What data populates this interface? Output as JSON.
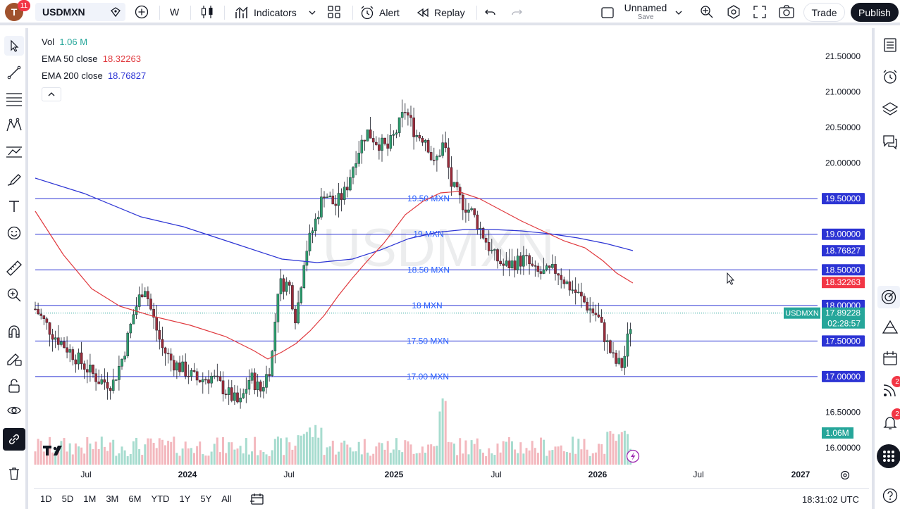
{
  "topbar": {
    "avatar_letter": "T",
    "notifications": "11",
    "symbol": "USDMXN",
    "interval": "W",
    "indicators_label": "Indicators",
    "alert_label": "Alert",
    "replay_label": "Replay",
    "layout_name": "Unnamed",
    "layout_sub": "Save",
    "trade_label": "Trade",
    "publish_label": "Publish"
  },
  "legend": {
    "vol_label": "Vol",
    "vol_value": "1.06 M",
    "ema50_label": "EMA 50 close",
    "ema50_value": "18.32263",
    "ema200_label": "EMA 200 close",
    "ema200_value": "18.76827"
  },
  "chart_data": {
    "type": "candlestick",
    "symbol": "USDMXN",
    "watermark": "USDMXN",
    "interval": "W",
    "price_axis": {
      "ticks": [
        "21.50000",
        "21.00000",
        "20.50000",
        "20.00000",
        "16.50000",
        "16.00000"
      ]
    },
    "time_axis": {
      "labels": [
        "Jul",
        "2024",
        "Jul",
        "2025",
        "Jul",
        "2026",
        "Jul",
        "2027"
      ]
    },
    "horizontal_lines": [
      {
        "label": "19.50 MXN",
        "axis_label": "19.50000"
      },
      {
        "label": "19 MXN",
        "axis_label": "19.00000"
      },
      {
        "label": "18.50 MXN",
        "axis_label": "18.50000"
      },
      {
        "label": "18 MXN",
        "axis_label": "18.00000"
      },
      {
        "label": "17.50 MXN",
        "axis_label": "17.50000"
      },
      {
        "label": "17.00 MXN",
        "axis_label": "17.00000"
      }
    ],
    "ema200_axis_label": "18.76827",
    "ema50_axis_label": "18.32263",
    "last_price": {
      "symbol": "USDMXN",
      "value": "17.89228",
      "countdown": "02:28:57"
    },
    "volume_axis_label": "1.06M",
    "candles_approx": [
      [
        2023.25,
        18.1,
        17.8
      ],
      [
        2023.45,
        17.2,
        16.8
      ],
      [
        2023.6,
        17.0,
        16.7
      ],
      [
        2023.75,
        17.7,
        18.2
      ],
      [
        2023.85,
        18.5,
        17.9
      ],
      [
        2023.95,
        17.3,
        16.9
      ],
      [
        2024.1,
        17.0,
        16.8
      ],
      [
        2024.25,
        16.9,
        16.7
      ],
      [
        2024.4,
        16.6,
        16.4
      ],
      [
        2024.45,
        17.0,
        18.3
      ],
      [
        2024.55,
        18.4,
        17.8
      ],
      [
        2024.6,
        18.6,
        19.3
      ],
      [
        2024.7,
        19.5,
        19.9
      ],
      [
        2024.8,
        20.2,
        20.5
      ],
      [
        2024.9,
        20.4,
        20.2
      ],
      [
        2025.0,
        20.6,
        20.3
      ],
      [
        2025.1,
        20.7,
        20.1
      ],
      [
        2025.2,
        20.0,
        19.6
      ],
      [
        2025.3,
        19.4,
        19.0
      ],
      [
        2025.4,
        19.0,
        18.6
      ],
      [
        2025.5,
        18.7,
        18.5
      ],
      [
        2025.6,
        18.6,
        18.4
      ],
      [
        2025.7,
        18.5,
        18.3
      ],
      [
        2025.8,
        18.3,
        18.0
      ],
      [
        2025.9,
        18.1,
        17.8
      ],
      [
        2026.0,
        17.6,
        17.3
      ],
      [
        2026.05,
        17.3,
        17.2
      ],
      [
        2026.1,
        17.3,
        17.9
      ]
    ]
  },
  "bottombar": {
    "ranges": [
      "1D",
      "5D",
      "1M",
      "3M",
      "6M",
      "YTD",
      "1Y",
      "5Y",
      "All"
    ],
    "clock": "18:31:02 UTC"
  }
}
